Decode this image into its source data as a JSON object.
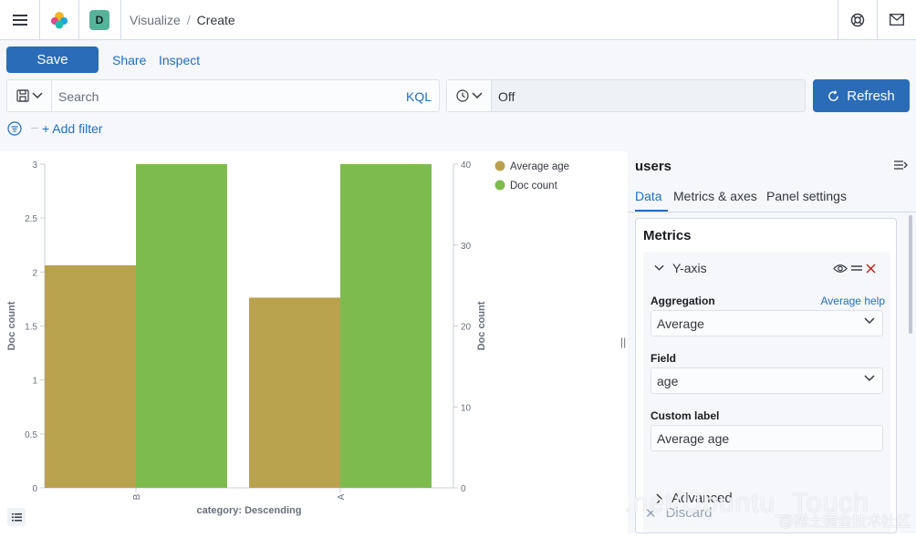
{
  "header": {
    "space_initial": "D",
    "breadcrumb": [
      "Visualize",
      "Create"
    ],
    "breadcrumb_separator": "/"
  },
  "toolbar": {
    "save_label": "Save",
    "share_label": "Share",
    "inspect_label": "Inspect"
  },
  "query": {
    "search_placeholder": "Search",
    "language": "KQL",
    "refresh_interval": "Off",
    "refresh_label": "Refresh",
    "add_filter_label": "+ Add filter"
  },
  "chart_data": {
    "type": "bar",
    "categories": [
      "B",
      "A"
    ],
    "series": [
      {
        "name": "Average age",
        "values": [
          27.5,
          23.5
        ],
        "color": "#b9a24d",
        "axis": "right"
      },
      {
        "name": "Doc count",
        "values": [
          3,
          3
        ],
        "color": "#7dbb4f",
        "axis": "left"
      }
    ],
    "xlabel": "category: Descending",
    "ylabel_left": "Doc count",
    "ylabel_right": "Doc count",
    "ylim_left": [
      0,
      3
    ],
    "yticks_left": [
      "0",
      "0.5",
      "1",
      "1.5",
      "2",
      "2.5",
      "3"
    ],
    "ylim_right": [
      0,
      40
    ],
    "yticks_right": [
      "0",
      "10",
      "20",
      "30",
      "40"
    ],
    "legend_position": "top-right",
    "grid": false
  },
  "panel": {
    "index_pattern": "users",
    "tabs": [
      "Data",
      "Metrics & axes",
      "Panel settings"
    ],
    "active_tab": "Data",
    "metrics_title": "Metrics",
    "metric": {
      "title": "Y-axis",
      "aggregation_label": "Aggregation",
      "aggregation_help": "Average help",
      "aggregation_value": "Average",
      "field_label": "Field",
      "field_value": "age",
      "custom_label_label": "Custom label",
      "custom_label_value": "Average age"
    },
    "advanced_label": "Advanced",
    "discard_label": "Discard"
  },
  "watermark": {
    "line1": ".net/Ubuntu_Touch",
    "line2": "@稀土掘金技术社区"
  },
  "colors": {
    "primary": "#2a6cb8",
    "link": "#1f6ec2",
    "space_badge": "#54b399"
  }
}
